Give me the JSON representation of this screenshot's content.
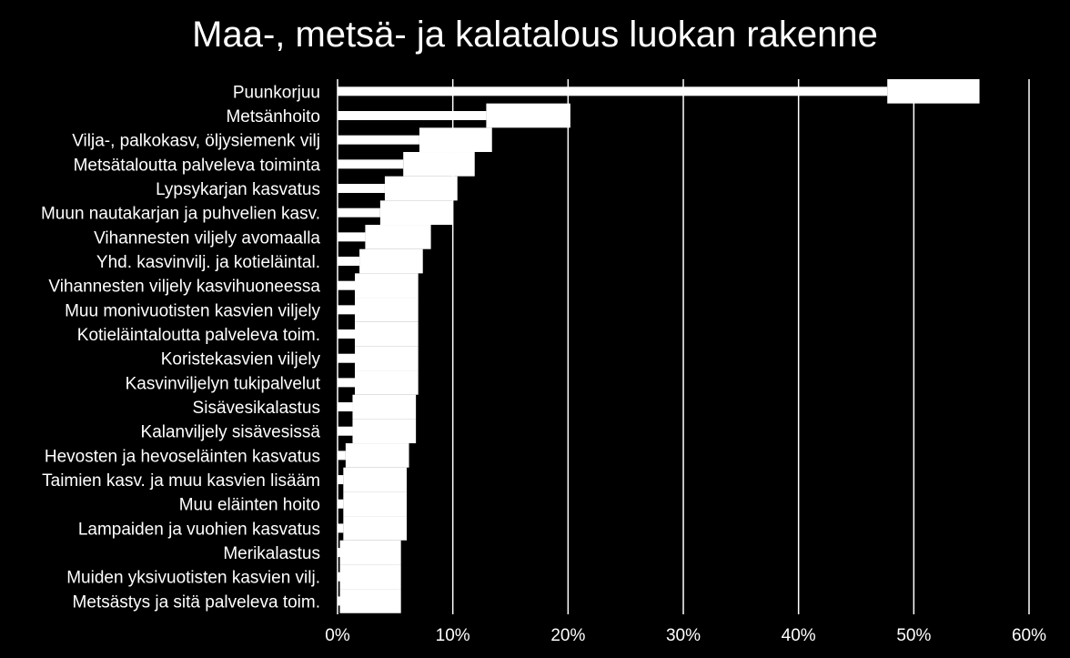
{
  "chart_data": {
    "type": "bar",
    "orientation": "horizontal",
    "title": "Maa-, metsä- ja kalatalous luokan rakenne",
    "xlim": [
      0,
      60
    ],
    "x_ticks": [
      "0%",
      "10%",
      "20%",
      "30%",
      "40%",
      "50%",
      "60%"
    ],
    "grid": true,
    "colors": {
      "background": "#000000",
      "bars": "#ffffff",
      "grid": "#ffffff"
    },
    "categories": [
      "Puunkorjuu",
      "Metsänhoito",
      "Vilja-, palkokasv, öljysiemenk vilj",
      "Metsätaloutta palveleva toiminta",
      "Lypsykarjan kasvatus",
      "Muun nautakarjan ja puhvelien kasv.",
      "Vihannesten viljely avomaalla",
      "Yhd. kasvinvilj. ja kotieläintal.",
      "Vihannesten viljely kasvihuoneessa",
      "Muu monivuotisten kasvien viljely",
      "Kotieläintaloutta palveleva toim.",
      "Koristekasvien viljely",
      "Kasvinviljelyn tukipalvelut",
      "Sisävesikalastus",
      "Kalanviljely sisävesissä",
      "Hevosten ja hevoseläinten kasvatus",
      "Taimien kasv. ja muu kasvien lisääm",
      "Muu eläinten hoito",
      "Lampaiden ja vuohien kasvatus",
      "Merikalastus",
      "Muiden yksivuotisten kasvien vilj.",
      "Metsästys ja sitä palveleva toim."
    ],
    "series": [
      {
        "values": [
          47.7,
          12.9,
          7.1,
          5.7,
          4.1,
          3.7,
          2.4,
          1.9,
          1.5,
          1.5,
          1.5,
          1.5,
          1.5,
          1.3,
          1.3,
          0.7,
          0.5,
          0.5,
          0.5,
          0.2,
          0.2,
          0.2
        ]
      },
      {
        "values": [
          8.0,
          7.3,
          6.3,
          6.2,
          6.3,
          6.3,
          5.7,
          5.5,
          5.5,
          5.5,
          5.5,
          5.5,
          5.5,
          5.5,
          5.5,
          5.5,
          5.5,
          5.5,
          5.5,
          5.3,
          5.3,
          5.3
        ]
      }
    ]
  }
}
